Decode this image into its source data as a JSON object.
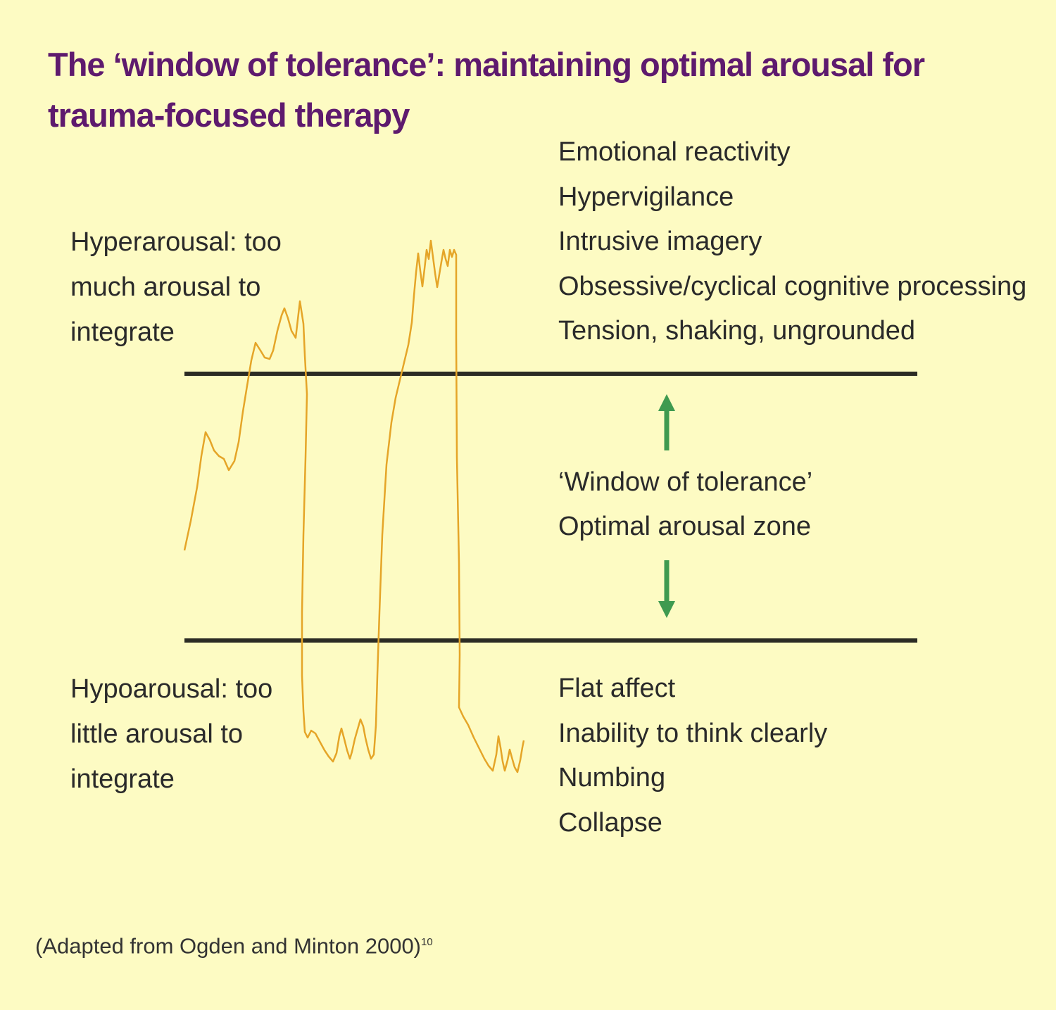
{
  "title": "The ‘window of tolerance’: maintaining optimal arousal for trauma-focused therapy",
  "hyperarousal": {
    "label": [
      "Hyperarousal: too",
      "much arousal to",
      "integrate"
    ],
    "symptoms": [
      "Emotional reactivity",
      "Hypervigilance",
      "Intrusive imagery",
      "Obsessive/cyclical cognitive processing",
      "Tension, shaking, ungrounded"
    ]
  },
  "window": {
    "title": "‘Window of tolerance’",
    "subtitle": "Optimal arousal zone"
  },
  "hypoarousal": {
    "label": [
      "Hypoarousal: too",
      "little arousal to",
      "integrate"
    ],
    "symptoms": [
      "Flat affect",
      "Inability to think clearly",
      "Numbing",
      "Collapse"
    ]
  },
  "citation": {
    "text": "(Adapted from Ogden and Minton 2000)",
    "ref": "10"
  },
  "colors": {
    "background": "#fdfbc3",
    "title": "#5e1a6e",
    "boundary_lines": "#2b2b24",
    "arrows": "#3f9a50",
    "arousal_trace": "#e5a528"
  }
}
